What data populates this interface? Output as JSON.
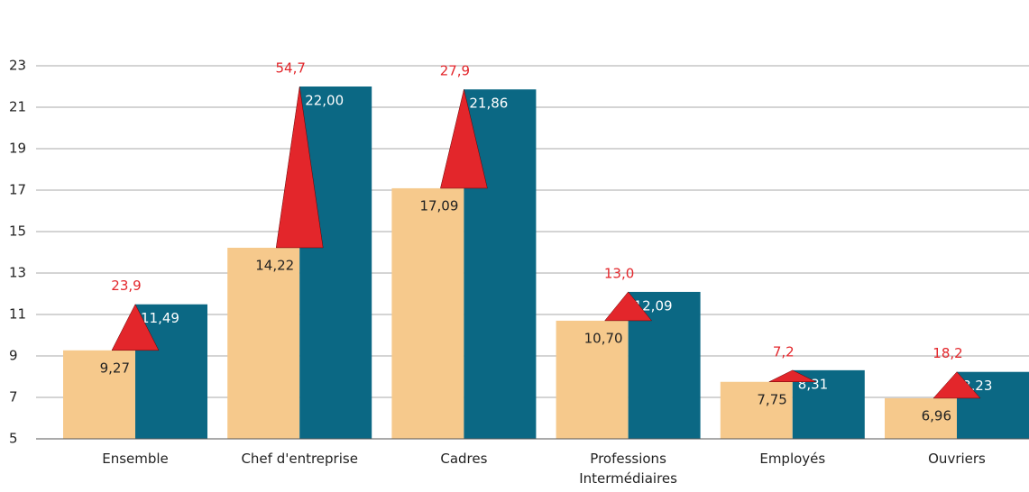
{
  "chart_data": {
    "type": "bar",
    "categories": [
      "Ensemble",
      "Chef d'entreprise",
      "Cadres",
      "Professions Intermédiaires",
      "Employés",
      "Ouvriers"
    ],
    "series": [
      {
        "color": "#f6c98c",
        "values": [
          9.27,
          14.22,
          17.09,
          10.7,
          7.75,
          6.96
        ],
        "value_labels": [
          "9,27",
          "14,22",
          "17,09",
          "10,70",
          "7,75",
          "6,96"
        ]
      },
      {
        "color": "#0b6884",
        "values": [
          11.49,
          22.0,
          21.86,
          12.09,
          8.31,
          8.23
        ],
        "value_labels": [
          "11,49",
          "22,00",
          "21,86",
          "12,09",
          "8,31",
          "8,23"
        ]
      }
    ],
    "gap": {
      "color": "#e3262b",
      "values": [
        23.9,
        54.7,
        27.9,
        13.0,
        7.2,
        18.2
      ],
      "value_labels": [
        "23,9",
        "54,7",
        "27,9",
        "13,0",
        "7,2",
        "18,2"
      ]
    },
    "ylim": [
      5,
      26
    ],
    "yticks": [
      5,
      7,
      9,
      11,
      13,
      15,
      17,
      19,
      21,
      23
    ],
    "grid": true
  }
}
